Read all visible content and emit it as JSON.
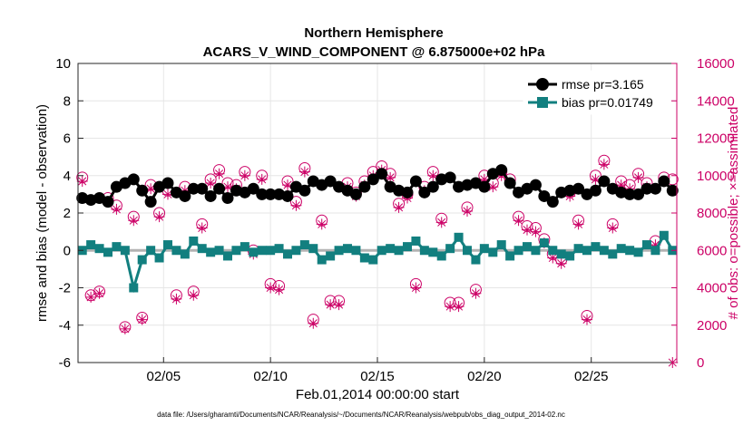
{
  "chart_data": {
    "type": "line",
    "title": "Northern Hemisphere",
    "subtitle": "ACARS_V_WIND_COMPONENT @ 6.875000e+02 hPa",
    "xlabel": "Feb.01,2014 00:00:00 start",
    "ylabel": "rmse and bias (model - observation)",
    "y2label": "# of obs: o=possible; ×=assimilated",
    "xlim": [
      1,
      29
    ],
    "ylim": [
      -6,
      10
    ],
    "y2lim": [
      0,
      16000
    ],
    "xticks": [
      5,
      10,
      15,
      20,
      25
    ],
    "xtick_labels": [
      "02/05",
      "02/10",
      "02/15",
      "02/20",
      "02/25"
    ],
    "yticks": [
      "-6",
      "-4",
      "-2",
      "0",
      "2",
      "4",
      "6",
      "8",
      "10"
    ],
    "y2ticks": [
      "0",
      "2000",
      "4000",
      "6000",
      "8000",
      "10000",
      "12000",
      "14000",
      "16000"
    ],
    "series": [
      {
        "name": "rmse pr=3.165",
        "color": "#000000",
        "values": [
          2.8,
          2.7,
          2.8,
          2.6,
          3.4,
          3.6,
          3.8,
          3.2,
          2.6,
          3.4,
          3.6,
          3.1,
          2.9,
          3.3,
          3.3,
          2.9,
          3.3,
          2.8,
          3.2,
          3.1,
          3.3,
          3.0,
          3.0,
          3.0,
          2.9,
          3.4,
          3.2,
          3.7,
          3.5,
          3.7,
          3.4,
          3.2,
          3.0,
          3.4,
          3.8,
          4.1,
          3.4,
          3.2,
          3.1,
          3.7,
          3.1,
          3.4,
          3.8,
          3.9,
          3.4,
          3.5,
          3.6,
          3.4,
          4.1,
          4.3,
          3.6,
          3.1,
          3.3,
          3.5,
          2.9,
          2.6,
          3.1,
          3.2,
          3.3,
          3.0,
          3.2,
          3.7,
          3.3,
          3.1,
          3.0,
          3.0,
          3.3,
          3.3,
          3.7,
          3.2
        ]
      },
      {
        "name": "bias pr=0.01749",
        "color": "#127f7f",
        "values": [
          0.0,
          0.3,
          0.1,
          -0.1,
          0.2,
          0.0,
          -2.0,
          -0.5,
          0.0,
          -0.4,
          0.3,
          0.0,
          -0.2,
          0.5,
          0.1,
          -0.1,
          0.0,
          -0.3,
          0.0,
          0.2,
          -0.1,
          0.0,
          0.0,
          0.1,
          -0.2,
          0.0,
          0.3,
          0.1,
          -0.5,
          -0.3,
          0.0,
          0.1,
          0.0,
          -0.4,
          -0.5,
          0.0,
          0.1,
          0.0,
          0.2,
          0.5,
          0.0,
          -0.1,
          -0.3,
          0.1,
          0.7,
          0.0,
          -0.5,
          0.1,
          -0.1,
          0.3,
          -0.3,
          0.0,
          0.2,
          0.0,
          0.4,
          0.0,
          -0.2,
          -0.3,
          0.1,
          0.0,
          0.2,
          0.0,
          -0.2,
          0.1,
          0.0,
          -0.1,
          0.3,
          0.0,
          0.8,
          0.0
        ]
      },
      {
        "name": "obs possible",
        "color": "#cc0066",
        "axis": "right",
        "values": [
          9900,
          3600,
          3800,
          8800,
          8400,
          1900,
          7800,
          2400,
          9500,
          8000,
          9200,
          3600,
          9400,
          3800,
          7400,
          9800,
          10300,
          9600,
          9500,
          10200,
          6000,
          10000,
          4200,
          4100,
          9700,
          8600,
          10400,
          2300,
          7600,
          3300,
          3300,
          9600,
          9100,
          9700,
          10200,
          10500,
          10100,
          8500,
          9000,
          4200,
          9400,
          10200,
          7700,
          3200,
          3200,
          8300,
          3900,
          10000,
          9600,
          10200,
          9800,
          7800,
          7300,
          7200,
          6600,
          5800,
          5500,
          9100,
          7600,
          2500,
          10000,
          10800,
          7400,
          9700,
          9500,
          10100,
          9600,
          6500,
          9900,
          9800
        ]
      },
      {
        "name": "obs assimilated",
        "color": "#cc0066",
        "axis": "right",
        "values": [
          9700,
          3500,
          3700,
          8600,
          8200,
          1800,
          7600,
          2300,
          9300,
          7800,
          9000,
          3400,
          9200,
          3600,
          7200,
          9600,
          10100,
          9400,
          9300,
          10000,
          5800,
          9800,
          4000,
          3900,
          9500,
          8400,
          10200,
          2100,
          7400,
          3100,
          3100,
          9400,
          8900,
          9500,
          10000,
          10300,
          9900,
          8300,
          8800,
          4000,
          9200,
          10000,
          7500,
          3000,
          3000,
          8100,
          3700,
          9800,
          9400,
          10000,
          9600,
          7600,
          7100,
          7000,
          6400,
          5600,
          5300,
          8900,
          7400,
          2300,
          9800,
          10600,
          7200,
          9500,
          9300,
          9900,
          9400,
          6300,
          9700,
          0
        ]
      }
    ],
    "grid": true,
    "legend": "top-right"
  },
  "footer": "data file: /Users/gharamti/Documents/NCAR/Reanalysis/~/Documents/NCAR/Reanalysis/webpub/obs_diag_output_2014-02.nc"
}
